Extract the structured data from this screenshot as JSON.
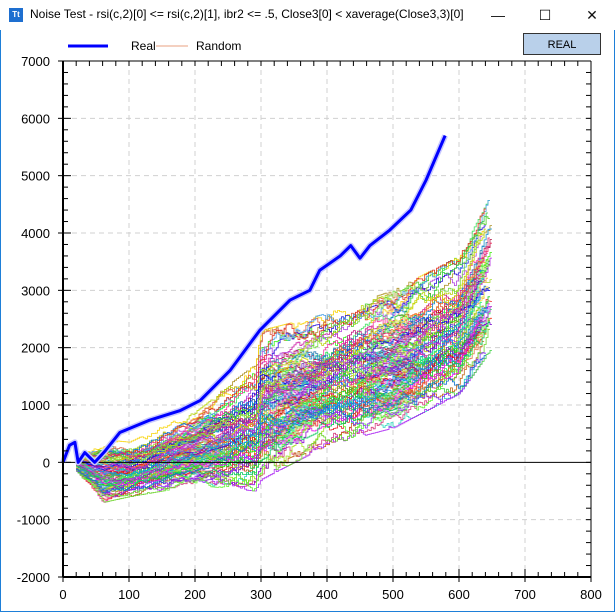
{
  "window": {
    "title": "Noise Test - rsi(c,2)[0] <= rsi(c,2)[1], ibr2 <= .5, Close3[0] < xaverage(Close3,3)[0]",
    "icon_label": "Tt",
    "minimize": "—",
    "maximize": "☐",
    "close": "✕"
  },
  "toolbar": {
    "real_button": "REAL"
  },
  "chart_data": {
    "type": "line",
    "title": "",
    "xlabel": "",
    "ylabel": "",
    "xlim": [
      0,
      800
    ],
    "ylim": [
      -2000,
      7000
    ],
    "xticks": [
      "0",
      "100",
      "200",
      "300",
      "400",
      "500",
      "600",
      "700",
      "800"
    ],
    "yticks": [
      "7000",
      "6000",
      "5000",
      "4000",
      "3000",
      "2000",
      "1000",
      "0",
      "-1000",
      "-2000"
    ],
    "grid": true,
    "legend": {
      "placement": "top-left",
      "entries": [
        "Real",
        "Random"
      ]
    },
    "series": [
      {
        "name": "Real",
        "color": "#0000ff",
        "x": [
          0,
          10,
          18,
          23,
          33,
          48,
          64,
          86,
          130,
          177,
          208,
          253,
          298,
          344,
          374,
          389,
          420,
          436,
          450,
          465,
          495,
          527,
          550,
          579
        ],
        "y": [
          0,
          300,
          350,
          0,
          170,
          0,
          200,
          520,
          730,
          900,
          1080,
          1600,
          2300,
          2830,
          3000,
          3350,
          3600,
          3780,
          3560,
          3780,
          4050,
          4400,
          4920,
          5700
        ]
      }
    ],
    "random_series": {
      "name": "Random",
      "count": 100,
      "x_range": [
        20,
        650
      ],
      "band_x": [
        20,
        60,
        100,
        200,
        290,
        300,
        400,
        500,
        600,
        650
      ],
      "band_low": [
        -200,
        -700,
        -600,
        -400,
        -500,
        -300,
        300,
        600,
        1200,
        2000
      ],
      "band_high": [
        200,
        400,
        350,
        900,
        1700,
        2300,
        2600,
        3000,
        3600,
        4700
      ]
    }
  }
}
